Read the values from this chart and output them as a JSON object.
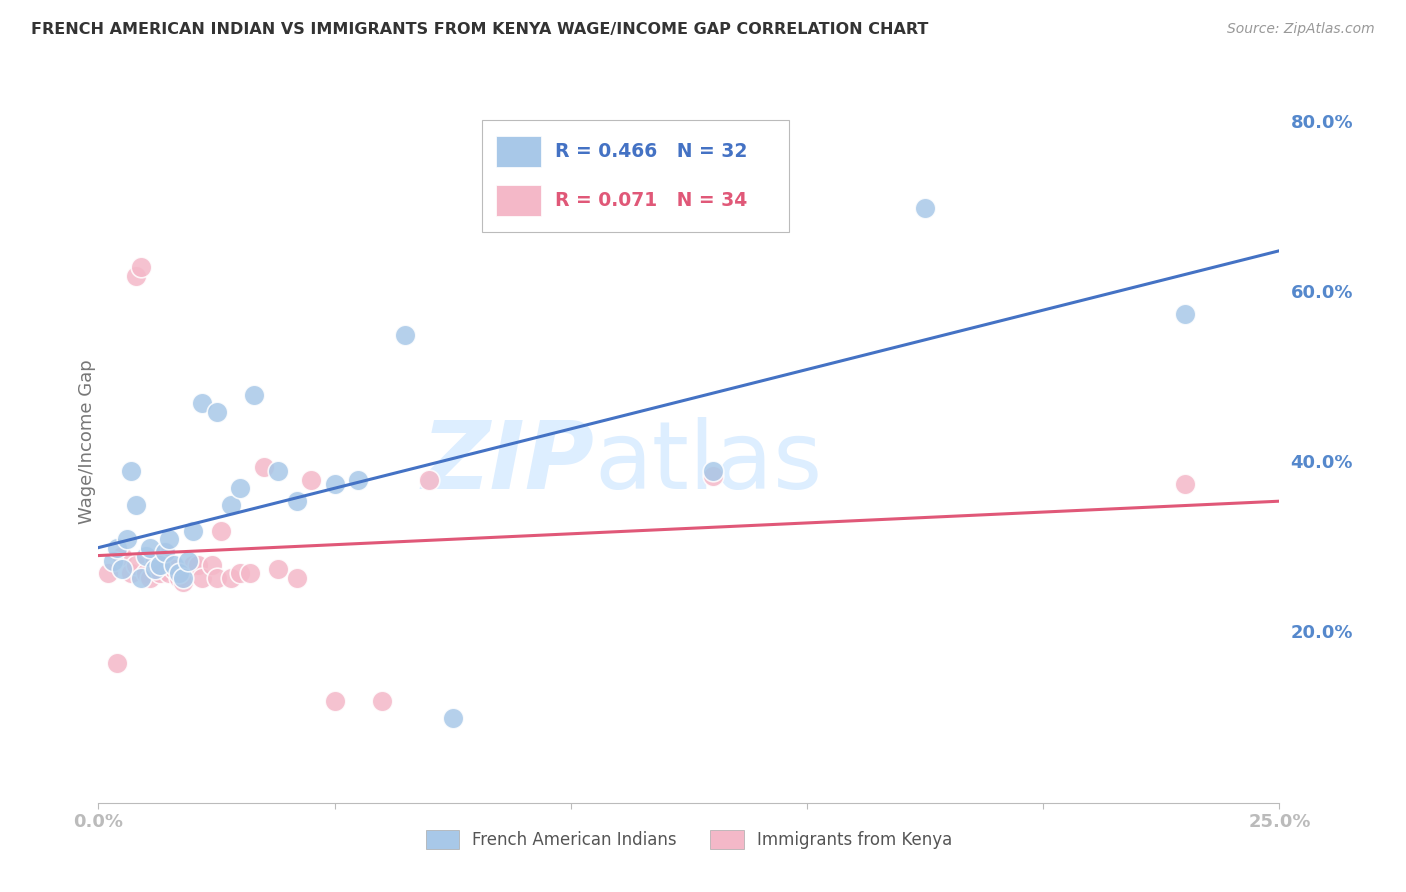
{
  "title": "FRENCH AMERICAN INDIAN VS IMMIGRANTS FROM KENYA WAGE/INCOME GAP CORRELATION CHART",
  "source": "Source: ZipAtlas.com",
  "ylabel": "Wage/Income Gap",
  "xmin": 0.0,
  "xmax": 0.25,
  "ymin": 0.0,
  "ymax": 0.85,
  "y_ticks": [
    0.2,
    0.4,
    0.6,
    0.8
  ],
  "legend_blue_r": "R = 0.466",
  "legend_blue_n": "N = 32",
  "legend_pink_r": "R = 0.071",
  "legend_pink_n": "N = 34",
  "watermark_zip": "ZIP",
  "watermark_atlas": "atlas",
  "blue_scatter_x": [
    0.003,
    0.004,
    0.005,
    0.006,
    0.007,
    0.008,
    0.009,
    0.01,
    0.011,
    0.012,
    0.013,
    0.014,
    0.015,
    0.016,
    0.017,
    0.018,
    0.019,
    0.02,
    0.022,
    0.025,
    0.028,
    0.03,
    0.033,
    0.038,
    0.042,
    0.05,
    0.055,
    0.065,
    0.075,
    0.13,
    0.175,
    0.23
  ],
  "blue_scatter_y": [
    0.285,
    0.3,
    0.275,
    0.31,
    0.39,
    0.35,
    0.265,
    0.29,
    0.3,
    0.275,
    0.28,
    0.295,
    0.31,
    0.28,
    0.27,
    0.265,
    0.285,
    0.32,
    0.47,
    0.46,
    0.35,
    0.37,
    0.48,
    0.39,
    0.355,
    0.375,
    0.38,
    0.55,
    0.1,
    0.39,
    0.7,
    0.575
  ],
  "pink_scatter_x": [
    0.002,
    0.004,
    0.005,
    0.007,
    0.008,
    0.008,
    0.009,
    0.01,
    0.011,
    0.012,
    0.013,
    0.014,
    0.015,
    0.016,
    0.017,
    0.018,
    0.02,
    0.021,
    0.022,
    0.024,
    0.025,
    0.026,
    0.028,
    0.03,
    0.032,
    0.035,
    0.038,
    0.042,
    0.045,
    0.05,
    0.06,
    0.07,
    0.13,
    0.23
  ],
  "pink_scatter_y": [
    0.27,
    0.165,
    0.29,
    0.27,
    0.28,
    0.62,
    0.63,
    0.27,
    0.265,
    0.285,
    0.27,
    0.295,
    0.27,
    0.275,
    0.265,
    0.26,
    0.28,
    0.28,
    0.265,
    0.28,
    0.265,
    0.32,
    0.265,
    0.27,
    0.27,
    0.395,
    0.275,
    0.265,
    0.38,
    0.12,
    0.12,
    0.38,
    0.385,
    0.375
  ],
  "blue_color": "#a8c8e8",
  "pink_color": "#f4b8c8",
  "blue_line_color": "#4472c4",
  "pink_line_color": "#e05878",
  "background_color": "#ffffff",
  "grid_color": "#d0d0d0",
  "title_color": "#333333",
  "tick_label_color": "#5588cc",
  "watermark_color": "#ddeeff"
}
